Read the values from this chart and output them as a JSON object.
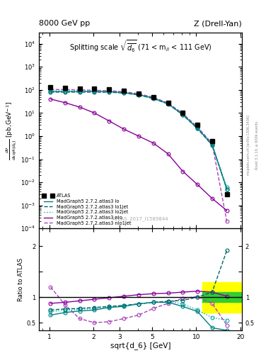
{
  "title_left": "8000 GeV pp",
  "title_right": "Z (Drell-Yan)",
  "plot_title": "Splitting scale $\\sqrt{\\overline{d_6}}$ (71 < m$_{ll}$ < 111 GeV)",
  "ylabel_main": "$\\frac{d\\sigma}{dsqrt(\\tilde{d}_6)}$ [pb,GeV$^{-1}$]",
  "ylabel_ratio": "Ratio to ATLAS",
  "xlabel": "sqrt{d_6} [GeV]",
  "watermark": "ATLAS_2017_I1589844",
  "right_label1": "Rivet 3.1.10, ≥ 600k events",
  "right_label2": "mcplots.cern.ch [arXiv:1306.3436]",
  "atlas_x": [
    1.02,
    1.28,
    1.61,
    2.03,
    2.56,
    3.22,
    4.06,
    5.11,
    6.44,
    8.11,
    10.21,
    12.86,
    16.2
  ],
  "atlas_y": [
    130.0,
    120.0,
    115.0,
    110.0,
    104.0,
    92.0,
    70.0,
    48.0,
    27.0,
    10.0,
    3.0,
    0.6,
    0.003
  ],
  "lo_x": [
    1.02,
    1.28,
    1.61,
    2.03,
    2.56,
    3.22,
    4.06,
    5.11,
    6.44,
    8.11,
    10.21,
    12.86,
    16.2
  ],
  "lo_y": [
    85.0,
    85.0,
    85.0,
    85.0,
    83.0,
    76.0,
    62.0,
    44.0,
    25.0,
    8.5,
    2.2,
    0.42,
    0.005
  ],
  "lo1jet_x": [
    1.02,
    1.28,
    1.61,
    2.03,
    2.56,
    3.22,
    4.06,
    5.11,
    6.44,
    8.11,
    10.21,
    12.86,
    16.2
  ],
  "lo1jet_y": [
    80.0,
    80.0,
    80.0,
    80.0,
    79.0,
    73.0,
    60.0,
    42.0,
    24.5,
    8.3,
    2.1,
    0.4,
    0.005
  ],
  "lo2jet_x": [
    1.02,
    1.28,
    1.61,
    2.03,
    2.56,
    3.22,
    4.06,
    5.11,
    6.44,
    8.11,
    10.21,
    12.86,
    16.2
  ],
  "lo2jet_y": [
    90.0,
    90.0,
    90.0,
    88.0,
    86.0,
    78.0,
    63.0,
    45.0,
    25.5,
    8.8,
    2.3,
    0.45,
    0.006
  ],
  "nlo_x": [
    1.02,
    1.28,
    1.61,
    2.03,
    2.56,
    3.22,
    4.06,
    5.11,
    6.44,
    8.11,
    10.21,
    12.86,
    16.2
  ],
  "nlo_y": [
    40.0,
    28.0,
    18.0,
    10.0,
    4.5,
    2.0,
    1.0,
    0.5,
    0.17,
    0.03,
    0.008,
    0.002,
    0.0006
  ],
  "nlo1jet_x": [
    1.02,
    1.28,
    1.61,
    2.03,
    2.56,
    3.22,
    4.06,
    5.11,
    6.44,
    8.11,
    10.21,
    12.86,
    16.2
  ],
  "nlo1jet_y": [
    105.0,
    103.0,
    100.0,
    96.0,
    92.0,
    84.0,
    68.0,
    48.0,
    27.0,
    9.5,
    2.5,
    0.48,
    0.0002
  ],
  "ratio_lo_x": [
    1.02,
    1.28,
    1.61,
    2.03,
    2.56,
    3.22,
    4.06,
    5.11,
    6.44,
    8.11,
    10.21,
    12.86,
    16.2
  ],
  "ratio_lo_y": [
    0.65,
    0.7,
    0.73,
    0.75,
    0.8,
    0.82,
    0.87,
    0.9,
    0.9,
    0.82,
    0.72,
    0.4,
    0.35
  ],
  "ratio_lo1jet_x": [
    1.02,
    1.28,
    1.61,
    2.03,
    2.56,
    3.22,
    4.06,
    5.11,
    6.44,
    8.11,
    10.21,
    12.86,
    16.2
  ],
  "ratio_lo1jet_y": [
    0.75,
    0.77,
    0.78,
    0.8,
    0.82,
    0.84,
    0.87,
    0.9,
    0.92,
    0.94,
    1.0,
    1.1,
    1.92
  ],
  "ratio_lo2jet_x": [
    1.02,
    1.28,
    1.61,
    2.03,
    2.56,
    3.22,
    4.06,
    5.11,
    6.44,
    8.11,
    10.21,
    12.86,
    16.2
  ],
  "ratio_lo2jet_y": [
    0.72,
    0.74,
    0.76,
    0.78,
    0.81,
    0.83,
    0.87,
    0.9,
    0.92,
    0.87,
    0.75,
    0.6,
    0.55
  ],
  "ratio_nlo_x": [
    1.02,
    1.28,
    1.61,
    2.03,
    2.56,
    3.22,
    4.06,
    5.11,
    6.44,
    8.11,
    10.21,
    12.86,
    16.2
  ],
  "ratio_nlo_y": [
    0.88,
    0.9,
    0.93,
    0.96,
    0.99,
    1.02,
    1.05,
    1.07,
    1.08,
    1.1,
    1.12,
    1.1,
    1.02
  ],
  "ratio_nlo1jet_x": [
    1.02,
    1.28,
    1.61,
    2.03,
    2.56,
    3.22,
    4.06,
    5.11,
    6.44,
    8.11,
    10.21,
    12.86,
    16.2
  ],
  "ratio_nlo1jet_y": [
    1.2,
    0.85,
    0.58,
    0.5,
    0.52,
    0.58,
    0.65,
    0.78,
    0.88,
    0.98,
    1.01,
    0.88,
    0.45
  ],
  "color_lo": "#008080",
  "color_lo1jet": "#006666",
  "color_lo2jet": "#00aaaa",
  "color_nlo": "#880099",
  "color_nlo1jet": "#aa44bb",
  "color_atlas": "#000000",
  "band_xstart": 11.0,
  "band_xend": 20.5,
  "band_yellow_ymin": 0.7,
  "band_yellow_ymax": 1.3,
  "band_green_ymin": 0.9,
  "band_green_ymax": 1.1,
  "ylim_main": [
    0.0001,
    30000.0
  ],
  "ylim_ratio": [
    0.35,
    2.35
  ],
  "xlim": [
    0.85,
    20.5
  ],
  "ratio_yticks": [
    0.5,
    1.0,
    1.5,
    2.0
  ],
  "ratio_yticklabels": [
    "0.5",
    "1",
    "",
    "2"
  ]
}
